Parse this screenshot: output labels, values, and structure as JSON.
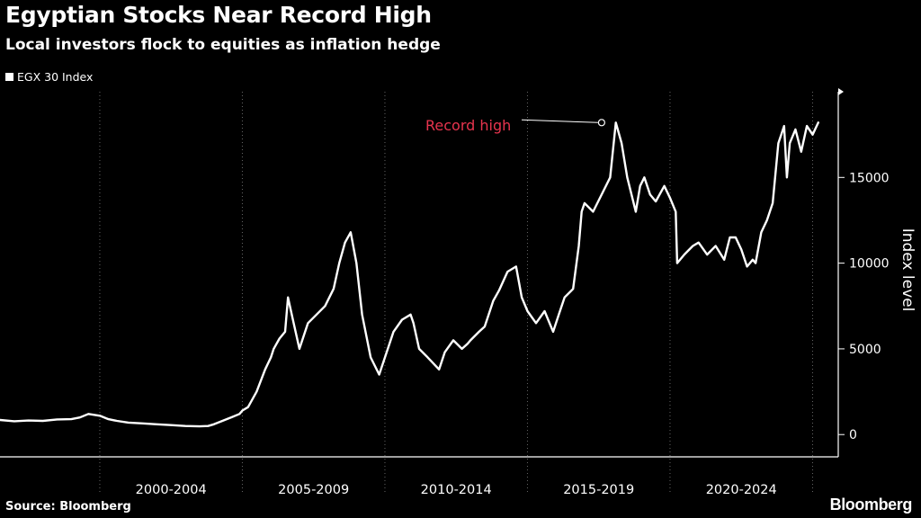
{
  "header": {
    "title": "Egyptian Stocks Near Record High",
    "subtitle": "Local investors flock to equities as inflation hedge"
  },
  "footer": {
    "source": "Source: Bloomberg",
    "brand": "Bloomberg"
  },
  "colors": {
    "background": "#000000",
    "line": "#ffffff",
    "annotation": "#e8344e",
    "grid": "#666666"
  },
  "chart_data": {
    "type": "line",
    "ylabel": "Index level",
    "xlabel": "",
    "legend": {
      "placement": "top-left",
      "entries": [
        "EGX 30 Index"
      ]
    },
    "grid": {
      "vertical": true,
      "horizontal": false,
      "style": "dotted"
    },
    "y_axis": {
      "position": "right",
      "ticks": [
        0,
        5000,
        10000,
        15000
      ],
      "range": [
        -1300,
        20000
      ]
    },
    "x_axis": {
      "range": [
        1996.5,
        2025.9
      ],
      "categories": [
        "2000-2004",
        "2005-2009",
        "2010-2014",
        "2015-2019",
        "2020-2024"
      ],
      "category_ranges": [
        [
          2000,
          2005
        ],
        [
          2005,
          2010
        ],
        [
          2010,
          2015
        ],
        [
          2015,
          2020
        ],
        [
          2020,
          2025
        ]
      ]
    },
    "series": [
      {
        "name": "EGX 30 Index",
        "x": [
          1996.5,
          1997.0,
          1997.5,
          1998.0,
          1998.5,
          1999.0,
          1999.3,
          1999.6,
          2000.0,
          2000.3,
          2000.6,
          2001.0,
          2001.5,
          2002.0,
          2002.5,
          2003.0,
          2003.5,
          2003.8,
          2004.0,
          2004.3,
          2004.6,
          2004.9,
          2005.0,
          2005.2,
          2005.5,
          2005.8,
          2006.0,
          2006.1,
          2006.3,
          2006.5,
          2006.6,
          2006.8,
          2007.0,
          2007.3,
          2007.6,
          2007.9,
          2008.2,
          2008.4,
          2008.6,
          2008.8,
          2009.0,
          2009.2,
          2009.5,
          2009.8,
          2010.0,
          2010.3,
          2010.6,
          2010.9,
          2011.0,
          2011.2,
          2011.5,
          2011.9,
          2012.1,
          2012.4,
          2012.7,
          2012.9,
          2013.0,
          2013.3,
          2013.5,
          2013.8,
          2014.0,
          2014.3,
          2014.6,
          2014.8,
          2015.0,
          2015.3,
          2015.6,
          2015.9,
          2016.1,
          2016.3,
          2016.6,
          2016.8,
          2016.9,
          2017.0,
          2017.3,
          2017.6,
          2017.9,
          2018.1,
          2018.3,
          2018.5,
          2018.8,
          2018.95,
          2019.1,
          2019.3,
          2019.5,
          2019.8,
          2020.0,
          2020.2,
          2020.25,
          2020.5,
          2020.8,
          2021.0,
          2021.3,
          2021.6,
          2021.9,
          2022.1,
          2022.3,
          2022.5,
          2022.7,
          2022.9,
          2023.0,
          2023.2,
          2023.4,
          2023.6,
          2023.8,
          2023.9,
          2024.0,
          2024.1,
          2024.2,
          2024.4,
          2024.6,
          2024.8,
          2025.0,
          2025.2
        ],
        "y": [
          850,
          780,
          820,
          800,
          880,
          900,
          1000,
          1200,
          1100,
          900,
          800,
          700,
          650,
          600,
          550,
          500,
          480,
          500,
          600,
          800,
          1000,
          1200,
          1400,
          1600,
          2500,
          3800,
          4500,
          5000,
          5600,
          6000,
          8000,
          6500,
          5000,
          6500,
          7000,
          7500,
          8500,
          10000,
          11200,
          11800,
          10000,
          7000,
          4500,
          3500,
          4500,
          6000,
          6700,
          7000,
          6500,
          5000,
          4500,
          3800,
          4800,
          5500,
          5000,
          5300,
          5500,
          6000,
          6300,
          7800,
          8400,
          9500,
          9800,
          8000,
          7200,
          6500,
          7200,
          6000,
          7000,
          8000,
          8500,
          11000,
          13000,
          13500,
          13000,
          14000,
          15000,
          18200,
          17000,
          15000,
          13000,
          14500,
          15000,
          14000,
          13600,
          14500,
          13800,
          13000,
          10000,
          10500,
          11000,
          11200,
          10500,
          11000,
          10200,
          11500,
          11500,
          10800,
          9800,
          10200,
          10000,
          11800,
          12500,
          13500,
          17000,
          17500,
          18000,
          15000,
          17000,
          17800,
          16500,
          18000,
          17500,
          18200
        ]
      }
    ],
    "annotations": [
      {
        "text": "Record high",
        "x": 2017.6,
        "y": 18200
      }
    ]
  }
}
